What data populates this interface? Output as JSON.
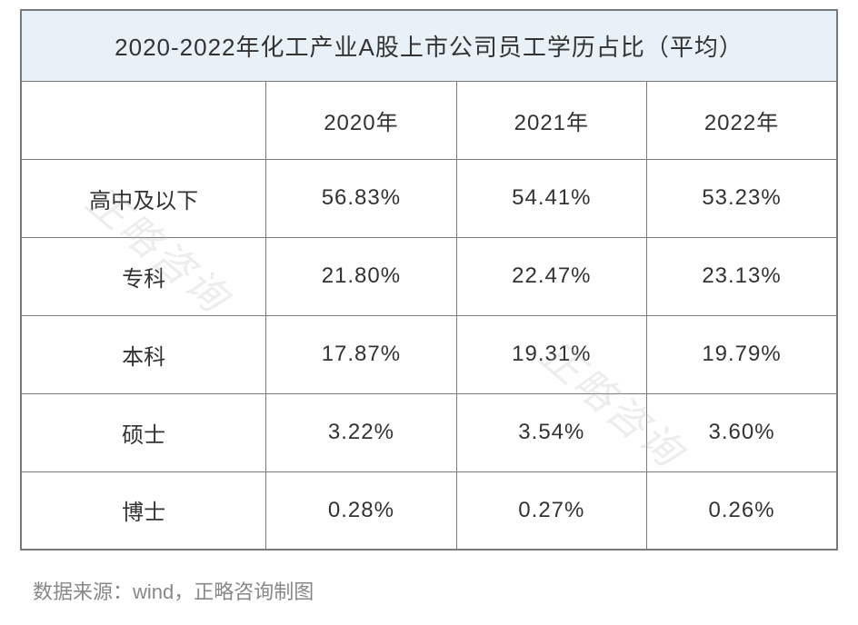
{
  "table": {
    "title": "2020-2022年化工产业A股上市公司员工学历占比（平均）",
    "title_bg_color": "#e8f0f8",
    "border_color": "#7a7a7a",
    "text_color": "#333333",
    "title_fontsize": 26,
    "cell_fontsize": 24,
    "columns": [
      "",
      "2020年",
      "2021年",
      "2022年"
    ],
    "rows": [
      {
        "label": "高中及以下",
        "values": [
          "56.83%",
          "54.41%",
          "53.23%"
        ]
      },
      {
        "label": "专科",
        "values": [
          "21.80%",
          "22.47%",
          "23.13%"
        ]
      },
      {
        "label": "本科",
        "values": [
          "17.87%",
          "19.31%",
          "19.79%"
        ]
      },
      {
        "label": "硕士",
        "values": [
          "3.22%",
          "3.54%",
          "3.60%"
        ]
      },
      {
        "label": "博士",
        "values": [
          "0.28%",
          "0.27%",
          "0.26%"
        ]
      }
    ]
  },
  "source": {
    "text": "数据来源：wind，正略咨询制图",
    "color": "#888888",
    "fontsize": 22
  },
  "watermark": {
    "text": "正略咨询",
    "color_rgba": "rgba(180,180,180,0.24)",
    "rotation_deg": 40,
    "fontsize": 44
  },
  "background_color": "#ffffff"
}
